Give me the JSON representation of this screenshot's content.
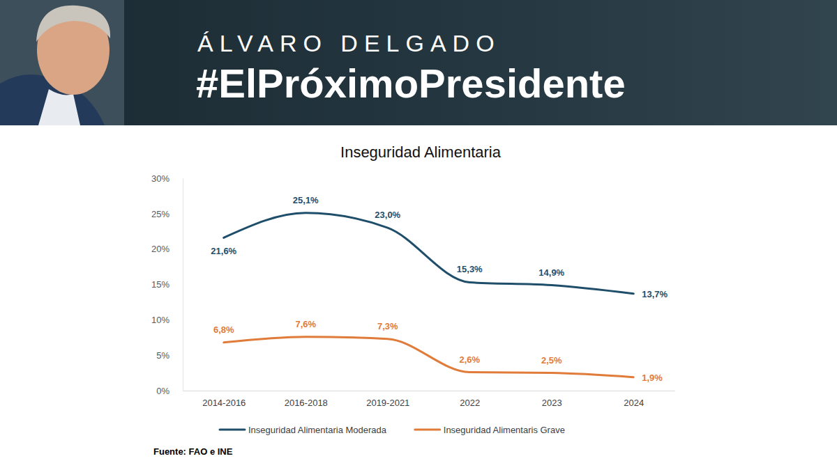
{
  "header": {
    "name": "ÁLVARO DELGADO",
    "hashtag": "#ElPróximoPresidente"
  },
  "chart_data": {
    "type": "line",
    "title": "Inseguridad Alimentaria",
    "source": "Fuente: FAO e INE",
    "categories": [
      "2014-2016",
      "2016-2018",
      "2019-2021",
      "2022",
      "2023",
      "2024"
    ],
    "series": [
      {
        "name": "Inseguridad Alimentaria Moderada",
        "color": "#1f4e6b",
        "values": [
          21.6,
          25.1,
          23.0,
          15.3,
          14.9,
          13.7
        ],
        "value_labels": [
          "21,6%",
          "25,1%",
          "23,0%",
          "15,3%",
          "14,9%",
          "13,7%"
        ]
      },
      {
        "name": "Inseguridad Alimentaris Grave",
        "color": "#e07b39",
        "values": [
          6.8,
          7.6,
          7.3,
          2.6,
          2.5,
          1.9
        ],
        "value_labels": [
          "6,8%",
          "7,6%",
          "7,3%",
          "2,6%",
          "2,5%",
          "1,9%"
        ]
      }
    ],
    "ylim": [
      0,
      30
    ],
    "yticks": [
      {
        "value": 0,
        "label": "0%"
      },
      {
        "value": 5,
        "label": "5%"
      },
      {
        "value": 10,
        "label": "10%"
      },
      {
        "value": 15,
        "label": "15%"
      },
      {
        "value": 20,
        "label": "20%"
      },
      {
        "value": 25,
        "label": "25%"
      },
      {
        "value": 30,
        "label": "30%"
      }
    ],
    "grid": false,
    "legend": "bottom",
    "data_labels": true
  }
}
